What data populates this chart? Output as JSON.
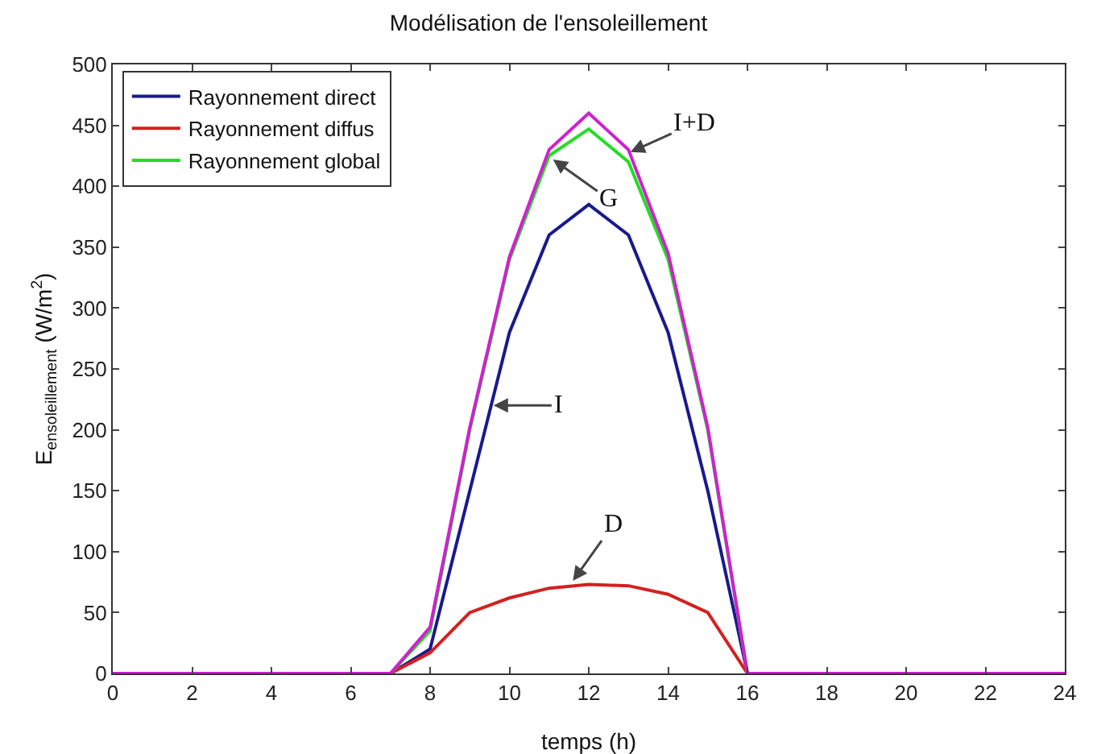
{
  "chart_data": {
    "type": "line",
    "title": "Modélisation de l'ensoleillement",
    "xlabel": "temps (h)",
    "ylabel": "E$_{ensoleillement}$ (W/m$^{2}$)",
    "x": [
      0,
      1,
      2,
      3,
      4,
      5,
      6,
      7,
      8,
      9,
      10,
      11,
      12,
      13,
      14,
      15,
      16,
      17,
      18,
      19,
      20,
      21,
      22,
      23,
      24
    ],
    "series": [
      {
        "name": "Rayonnement direct",
        "color": "#1a1a8c",
        "values": [
          null,
          null,
          null,
          null,
          null,
          null,
          null,
          0,
          20,
          150,
          280,
          360,
          385,
          360,
          280,
          150,
          0,
          null,
          null,
          null,
          null,
          null,
          null,
          null,
          null
        ]
      },
      {
        "name": "Rayonnement diffus",
        "color": "#d42020",
        "values": [
          null,
          null,
          null,
          null,
          null,
          null,
          null,
          0,
          17,
          50,
          62,
          70,
          73,
          72,
          65,
          50,
          0,
          null,
          null,
          null,
          null,
          null,
          null,
          null,
          null
        ]
      },
      {
        "name": "Rayonnement global",
        "color": "#22dd22",
        "values": [
          null,
          null,
          null,
          null,
          null,
          null,
          null,
          0,
          35,
          200,
          340,
          425,
          447,
          420,
          340,
          200,
          0,
          null,
          null,
          null,
          null,
          null,
          null,
          null,
          null
        ]
      },
      {
        "color": "#d020d0",
        "values": [
          0,
          0,
          0,
          0,
          0,
          0,
          0,
          0,
          38,
          202,
          342,
          430,
          460,
          430,
          345,
          202,
          0,
          0,
          0,
          0,
          0,
          0,
          0,
          0,
          0
        ]
      }
    ],
    "xlim": [
      0,
      24
    ],
    "xticks": [
      0,
      2,
      4,
      6,
      8,
      10,
      12,
      14,
      16,
      18,
      20,
      22,
      24
    ],
    "ylim": [
      0,
      500
    ],
    "yticks": [
      0,
      50,
      100,
      150,
      200,
      250,
      300,
      350,
      400,
      450,
      500
    ],
    "annotations": [
      {
        "text": "I",
        "x": 9.6,
        "y": 220
      },
      {
        "text": "D",
        "x": 11.6,
        "y": 76
      },
      {
        "text": "G",
        "x": 11.1,
        "y": 422
      },
      {
        "text": "I+D",
        "x": 13.05,
        "y": 428
      }
    ],
    "grid": false,
    "legend": "top left",
    "marker": "none",
    "line_style": "solid"
  }
}
